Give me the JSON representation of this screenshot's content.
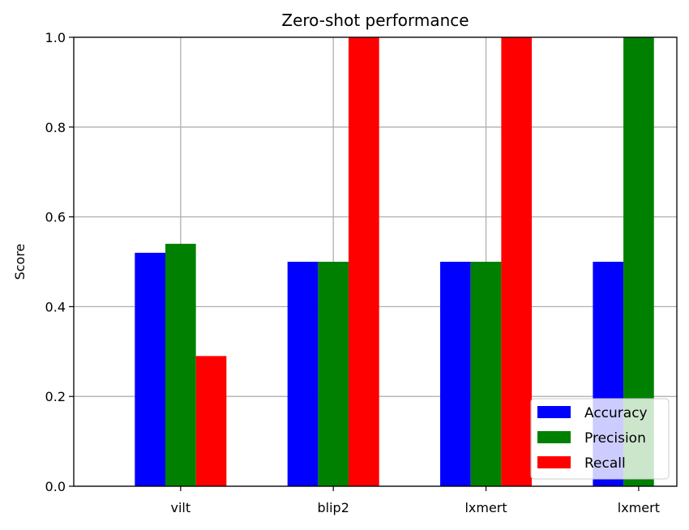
{
  "chart_data": {
    "type": "bar",
    "title": "Zero-shot performance",
    "xlabel": "",
    "ylabel": "Score",
    "categories": [
      "vilt",
      "blip2",
      "lxmert",
      "lxmert"
    ],
    "category_labels": [
      "vilt",
      "blip2",
      "lxmert",
      "lxmert"
    ],
    "series": [
      {
        "name": "Accuracy",
        "color": "#0000ff",
        "values": [
          0.52,
          0.5,
          0.5,
          0.5
        ]
      },
      {
        "name": "Precision",
        "color": "#008000",
        "values": [
          0.54,
          0.5,
          0.5,
          1.0
        ]
      },
      {
        "name": "Recall",
        "color": "#ff0000",
        "values": [
          0.29,
          1.0,
          1.0,
          0.0
        ]
      }
    ],
    "ylim": [
      0,
      1.0
    ],
    "yticks": [
      0.0,
      0.2,
      0.4,
      0.6,
      0.8,
      1.0
    ],
    "ytick_labels": [
      "0.0",
      "0.2",
      "0.4",
      "0.6",
      "0.8",
      "1.0"
    ],
    "grid": true,
    "legend_position": "bottom-right"
  }
}
